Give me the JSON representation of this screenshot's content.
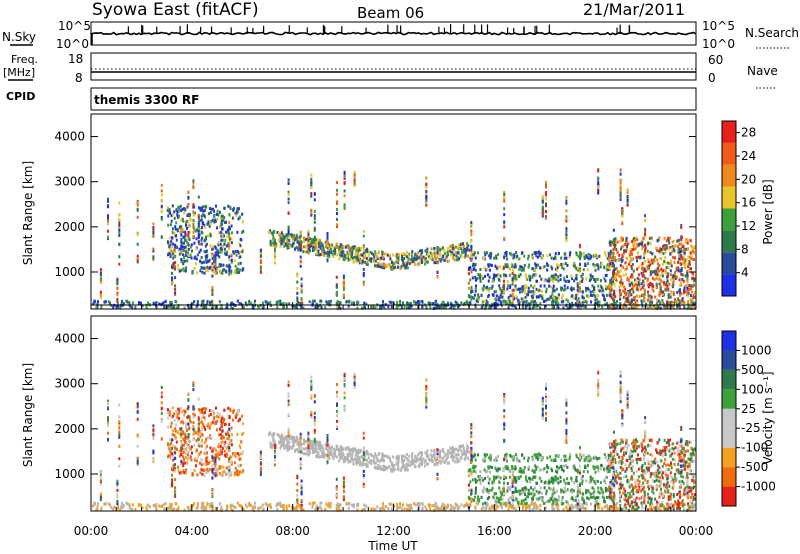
{
  "header": {
    "station": "Syowa East (fitACF)",
    "beam": "Beam 06",
    "date": "21/Mar/2011"
  },
  "top_panels": {
    "nsky": {
      "label": "N.Sky",
      "right_label": "N.Search",
      "left_ticks": [
        "10^5",
        "10^0"
      ],
      "right_ticks": [
        "10^5",
        "10^0"
      ]
    },
    "freq": {
      "label_line1": "Freq.",
      "label_line2": "[MHz]",
      "right_label": "Nave",
      "left_ticks": [
        "18",
        "8"
      ],
      "right_ticks": [
        "60",
        "0"
      ]
    },
    "cpid": {
      "label": "CPID",
      "program": "themis 3300 RF"
    }
  },
  "colors": {
    "power": [
      "#1f2fe6",
      "#2a4a9e",
      "#2e7a4a",
      "#3ea03a",
      "#e8c428",
      "#ef8a1a",
      "#f05a1a",
      "#e6201a"
    ],
    "velocity": [
      "#e6201a",
      "#f06a10",
      "#f5a020",
      "#c8c8c8",
      "#c8c8c8",
      "#3ea03a",
      "#2e7a4a",
      "#2a4a9e",
      "#1f2fe6"
    ],
    "ground_scatter": "#b4b4b4"
  },
  "chart_data": [
    {
      "type": "heatmap",
      "name": "power",
      "xlabel": "Time UT",
      "ylabel": "Slant Range [km]",
      "x_ticks": [
        "00:00",
        "04:00",
        "08:00",
        "12:00",
        "16:00",
        "20:00",
        "00:00"
      ],
      "xlim_hours": [
        0,
        24
      ],
      "ylim_km": [
        180,
        4500
      ],
      "y_ticks": [
        1000,
        2000,
        3000,
        4000
      ],
      "colorbar": {
        "label": "Power [dB]",
        "ticks": [
          4,
          8,
          12,
          16,
          20,
          24,
          28
        ],
        "range": [
          0,
          30
        ]
      },
      "features": [
        {
          "region": "dense echo cluster",
          "hours": [
            3.0,
            6.0
          ],
          "range_km": [
            1000,
            2500
          ]
        },
        {
          "region": "descending echo band",
          "hours": [
            7.0,
            15.0
          ],
          "range_km": [
            1100,
            1800
          ]
        },
        {
          "region": "near-range band",
          "hours": [
            0.0,
            24.0
          ],
          "range_km": [
            180,
            400
          ]
        },
        {
          "region": "strong late echoes",
          "hours": [
            20.5,
            24.0
          ],
          "range_km": [
            200,
            1800
          ]
        }
      ]
    },
    {
      "type": "heatmap",
      "name": "velocity",
      "xlabel": "Time UT",
      "ylabel": "Slant Range [km]",
      "x_ticks": [
        "00:00",
        "04:00",
        "08:00",
        "12:00",
        "16:00",
        "20:00",
        "00:00"
      ],
      "xlim_hours": [
        0,
        24
      ],
      "ylim_km": [
        180,
        4500
      ],
      "y_ticks": [
        1000,
        2000,
        3000,
        4000
      ],
      "colorbar": {
        "label": "Velocity [m s⁻¹]",
        "ticks": [
          "1000",
          "500",
          "100",
          "25",
          "-25",
          "-100",
          "-500",
          "-1000"
        ]
      },
      "features": [
        {
          "region": "negative-velocity cluster",
          "hours": [
            3.0,
            6.0
          ],
          "range_km": [
            1000,
            2500
          ]
        },
        {
          "region": "ground scatter band",
          "hours": [
            7.0,
            16.0
          ],
          "range_km": [
            1100,
            1800
          ]
        },
        {
          "region": "positive-velocity echoes",
          "hours": [
            15.0,
            24.0
          ],
          "range_km": [
            300,
            1600
          ]
        }
      ]
    }
  ]
}
